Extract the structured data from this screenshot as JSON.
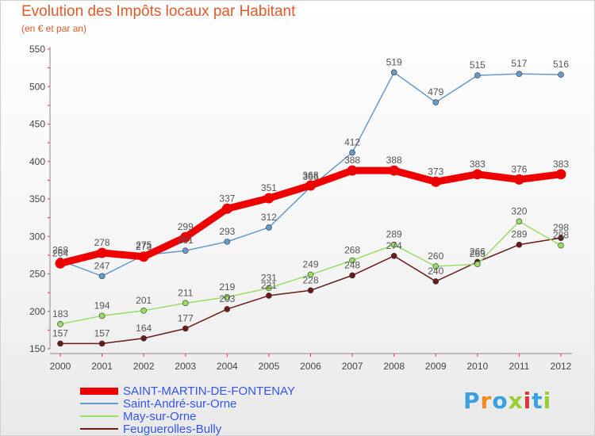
{
  "chart_data": {
    "type": "line",
    "title": "Evolution des Impôts locaux par Habitant",
    "subtitle": "(en € et par an)",
    "x": [
      "2000",
      "2001",
      "2002",
      "2003",
      "2004",
      "2005",
      "2006",
      "2007",
      "2008",
      "2009",
      "2010",
      "2011",
      "2012"
    ],
    "ylim": [
      150,
      550
    ],
    "yticks": [
      150,
      200,
      250,
      300,
      350,
      400,
      450,
      500,
      550
    ],
    "grid": false,
    "legend_position": "bottom-left",
    "series": [
      {
        "name": "Feuguerolles-Bully",
        "color": "#6b1a1a",
        "values": [
          157,
          157,
          164,
          177,
          203,
          221,
          228,
          248,
          274,
          240,
          266,
          289,
          298
        ]
      },
      {
        "name": "May-sur-Orne",
        "color": "#99dd66",
        "values": [
          183,
          194,
          201,
          211,
          219,
          231,
          249,
          268,
          289,
          260,
          263,
          320,
          288
        ]
      },
      {
        "name": "Saint-André-sur-Orne",
        "color": "#6699cc",
        "values": [
          268,
          247,
          275,
          281,
          293,
          312,
          366,
          412,
          519,
          479,
          515,
          517,
          516
        ]
      },
      {
        "name": "SAINT-MARTIN-DE-FONTENAY",
        "color": "#ee0000",
        "bold": true,
        "values": [
          264,
          278,
          273,
          299,
          337,
          351,
          368,
          388,
          388,
          373,
          383,
          376,
          383
        ]
      }
    ]
  },
  "legend": [
    {
      "label": "SAINT-MARTIN-DE-FONTENAY",
      "color": "#ee0000",
      "text_color": "#3355ee",
      "bold": true
    },
    {
      "label": "Saint-André-sur-Orne",
      "color": "#6699cc",
      "text_color": "#3355ee"
    },
    {
      "label": "May-sur-Orne",
      "color": "#99dd66",
      "text_color": "#3355ee"
    },
    {
      "label": "Feuguerolles-Bully",
      "color": "#6b1a1a",
      "text_color": "#3355ee"
    }
  ],
  "brand": {
    "text": "Proxiti",
    "letter_colors": [
      "#3aa0e0",
      "#f08a1c",
      "#3aa0e0",
      "#9acd32",
      "#e0333a",
      "#3aa0e0",
      "#9acd32"
    ]
  }
}
